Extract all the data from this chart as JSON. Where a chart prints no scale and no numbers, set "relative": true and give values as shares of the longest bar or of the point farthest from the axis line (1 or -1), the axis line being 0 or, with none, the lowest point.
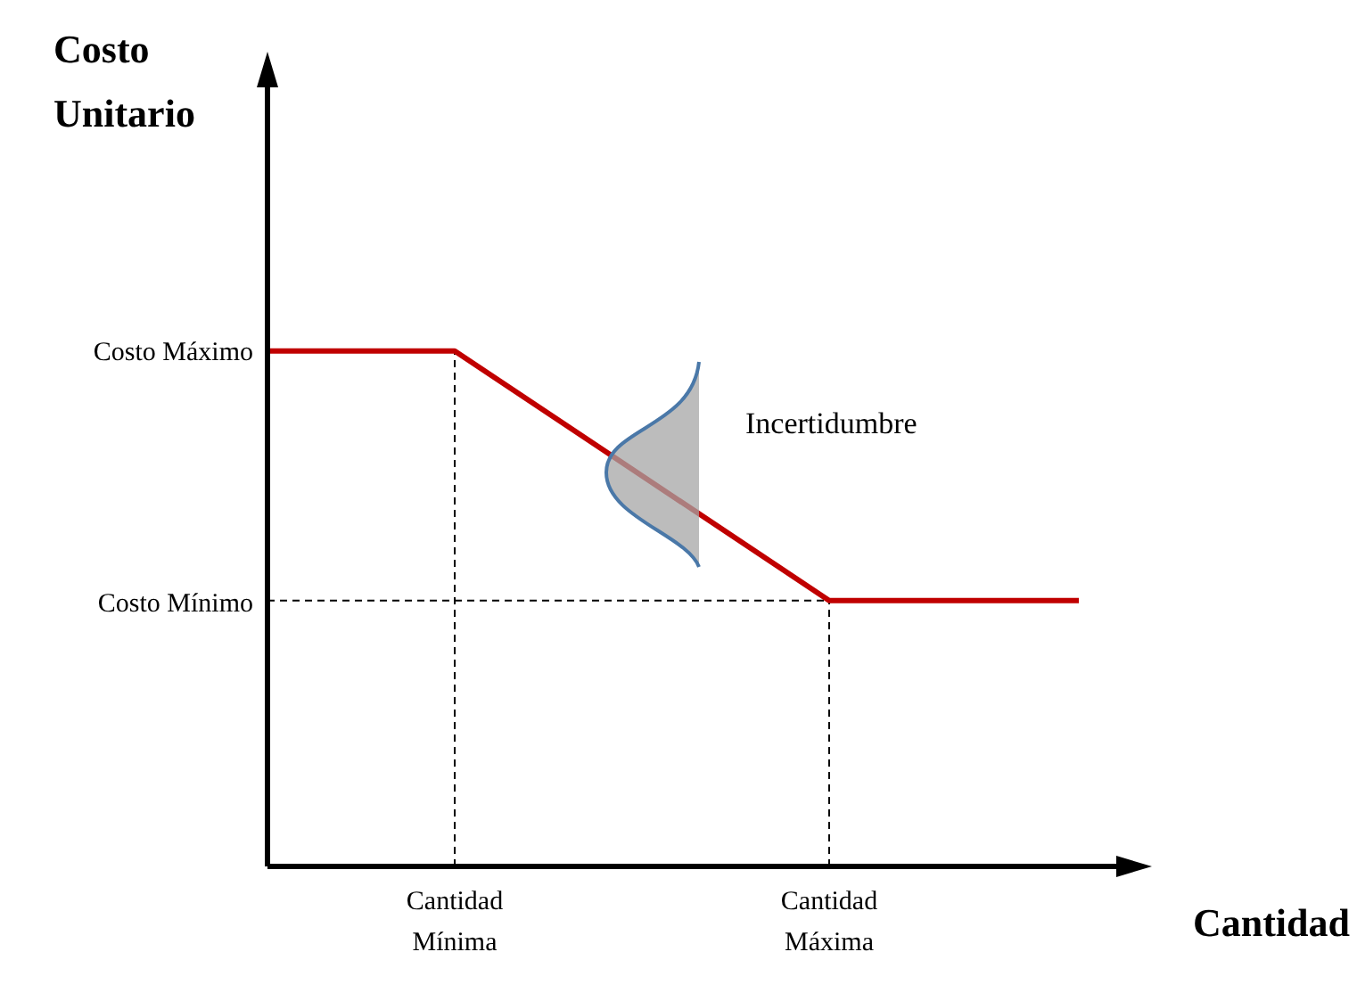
{
  "chart_data": {
    "type": "line",
    "relative": true,
    "xlabel": "Cantidad",
    "categories": [
      null,
      null,
      null,
      "Cantidad Mínima",
      null,
      null,
      null,
      null,
      null,
      "Cantidad Máxima",
      null,
      null,
      null,
      null
    ],
    "series": [
      {
        "color": "#c00000",
        "values": [
          1,
          null,
          null,
          1,
          null,
          null,
          null,
          null,
          null,
          0.516,
          null,
          null,
          null,
          0.516
        ]
      }
    ],
    "ref_lines": [
      {
        "axis": "y",
        "value": 0.516,
        "line_style": "dashed"
      },
      {
        "axis": "x",
        "value": "Cantidad Mínima",
        "line_style": "dashed"
      },
      {
        "axis": "x",
        "value": "Cantidad Máxima",
        "line_style": "dashed"
      }
    ],
    "annotations": [
      "Costo Unitario",
      "Costo Máximo",
      "Costo Mínimo",
      "Incertidumbre"
    ],
    "marker": "none",
    "line_style": "solid"
  }
}
